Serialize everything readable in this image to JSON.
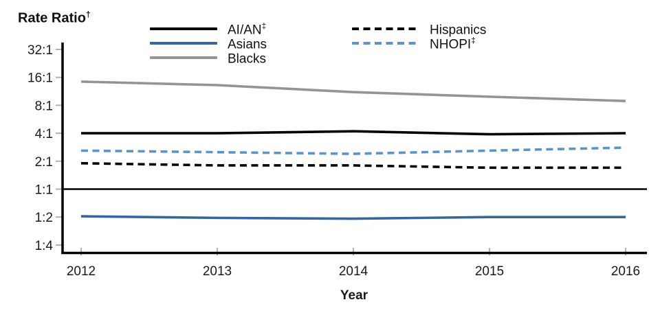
{
  "title": {
    "text": "Rate Ratio",
    "sup": "†"
  },
  "colors": {
    "axis": "#000000",
    "tick": "#b0b0b0",
    "background": "#ffffff",
    "aian": "#000000",
    "asians": "#35679a",
    "blacks": "#949494",
    "hispanics": "#000000",
    "nhopi": "#5b93cd"
  },
  "legend": {
    "columns": [
      {
        "items": [
          {
            "label": "AI/AN",
            "sup": "‡",
            "color": "#000000",
            "dashed": false
          },
          {
            "label": "Asians",
            "sup": "",
            "color": "#35679a",
            "dashed": false
          },
          {
            "label": "Blacks",
            "sup": "",
            "color": "#949494",
            "dashed": false
          }
        ]
      },
      {
        "items": [
          {
            "label": "Hispanics",
            "sup": "",
            "color": "#000000",
            "dashed": true
          },
          {
            "label": "NHOPI",
            "sup": "‡",
            "color": "#5b93cd",
            "dashed": true
          }
        ]
      }
    ]
  },
  "chart_data": {
    "type": "line",
    "title": "Rate Ratio†",
    "xlabel": "Year",
    "ylabel": "Rate Ratio†",
    "x": [
      2012,
      2013,
      2014,
      2015,
      2016
    ],
    "y_scale": "log2",
    "ylim": [
      0.25,
      32
    ],
    "grid": false,
    "legend_position": "top",
    "y_ticks": [
      {
        "label": "32:1",
        "value": 32
      },
      {
        "label": "16:1",
        "value": 16
      },
      {
        "label": "8:1",
        "value": 8
      },
      {
        "label": "4:1",
        "value": 4
      },
      {
        "label": "2:1",
        "value": 2
      },
      {
        "label": "1:1",
        "value": 1
      },
      {
        "label": "1:2",
        "value": 0.5
      },
      {
        "label": "1:4",
        "value": 0.25
      }
    ],
    "reference_line": {
      "value": 1,
      "label": "1:1"
    },
    "series": [
      {
        "name": "AI/AN‡",
        "color": "#000000",
        "style": "solid",
        "values": [
          4.0,
          4.0,
          4.2,
          3.9,
          4.0
        ]
      },
      {
        "name": "Asians",
        "color": "#35679a",
        "style": "solid",
        "values": [
          0.51,
          0.49,
          0.48,
          0.5,
          0.5
        ]
      },
      {
        "name": "Blacks",
        "color": "#949494",
        "style": "solid",
        "values": [
          14.4,
          13.2,
          11.1,
          9.9,
          8.9
        ]
      },
      {
        "name": "Hispanics",
        "color": "#000000",
        "style": "dashed",
        "values": [
          1.9,
          1.8,
          1.8,
          1.7,
          1.7
        ]
      },
      {
        "name": "NHOPI‡",
        "color": "#5b93cd",
        "style": "dashed",
        "values": [
          2.6,
          2.5,
          2.4,
          2.6,
          2.8
        ]
      }
    ]
  }
}
